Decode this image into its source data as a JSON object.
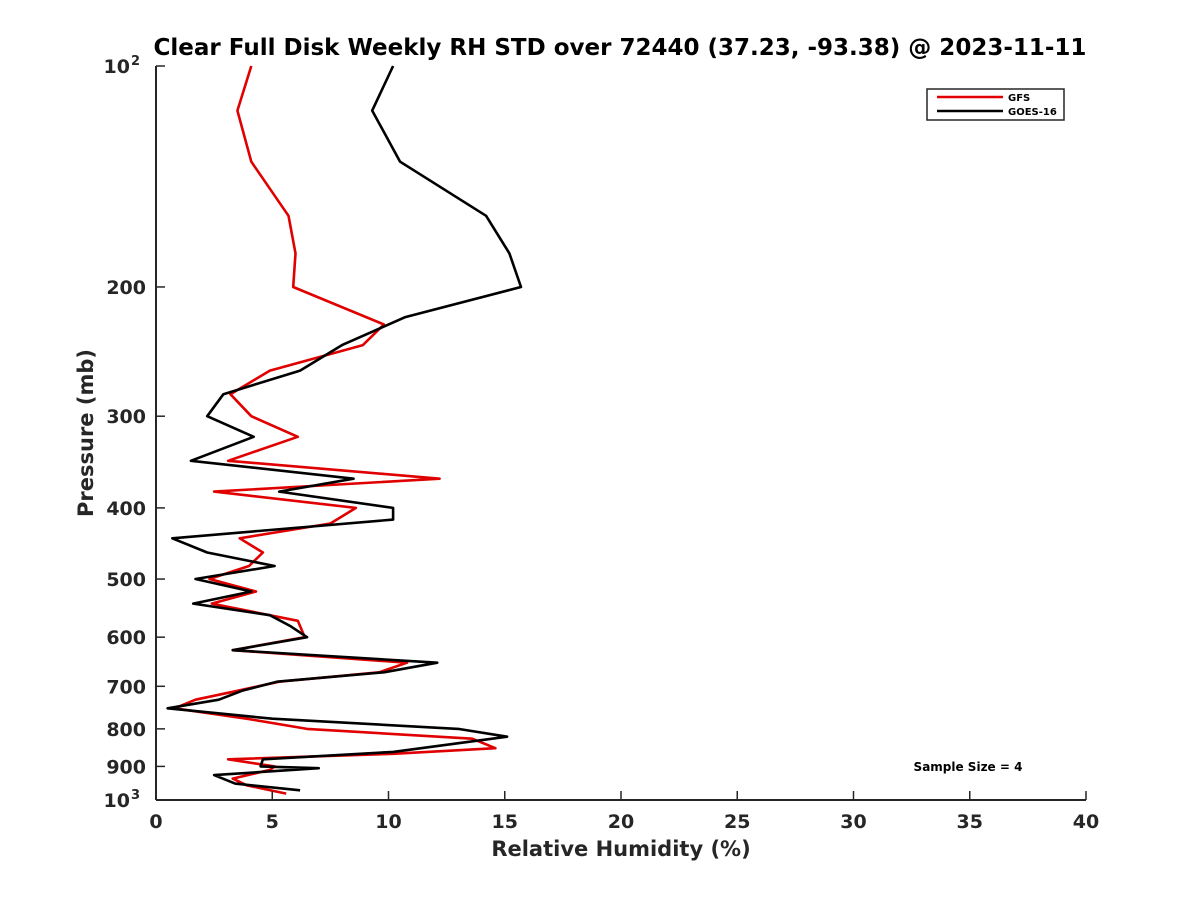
{
  "chart_data": {
    "type": "line",
    "title": "Clear Full Disk Weekly RH STD over 72440 (37.23, -93.38) @ 2023-11-11",
    "xlabel": "Relative Humidity (%)",
    "ylabel": "Pressure (mb)",
    "xlim": [
      0,
      40
    ],
    "ylim": [
      100,
      1000
    ],
    "y_scale": "log",
    "y_reversed": true,
    "x_ticks": [
      "0",
      "5",
      "10",
      "15",
      "20",
      "25",
      "30",
      "35",
      "40"
    ],
    "y_ticks": [
      {
        "base": "10",
        "exp": "2",
        "value": 100
      },
      {
        "label": "200",
        "value": 200
      },
      {
        "label": "300",
        "value": 300
      },
      {
        "label": "400",
        "value": 400
      },
      {
        "label": "500",
        "value": 500
      },
      {
        "label": "600",
        "value": 600
      },
      {
        "label": "700",
        "value": 700
      },
      {
        "label": "800",
        "value": 800
      },
      {
        "label": "900",
        "value": 900
      },
      {
        "base": "10",
        "exp": "3",
        "value": 1000
      }
    ],
    "grid": false,
    "legend_position": "top-right",
    "series": [
      {
        "name": "GFS",
        "color": "#e00000",
        "points": [
          [
            4.1,
            100
          ],
          [
            3.5,
            115
          ],
          [
            4.1,
            135
          ],
          [
            5.7,
            160
          ],
          [
            6.0,
            180
          ],
          [
            5.9,
            200
          ],
          [
            9.8,
            225
          ],
          [
            8.9,
            240
          ],
          [
            4.9,
            260
          ],
          [
            3.2,
            280
          ],
          [
            4.1,
            300
          ],
          [
            6.1,
            320
          ],
          [
            3.1,
            345
          ],
          [
            12.2,
            365
          ],
          [
            2.5,
            380
          ],
          [
            8.6,
            400
          ],
          [
            7.5,
            420
          ],
          [
            3.6,
            440
          ],
          [
            4.6,
            460
          ],
          [
            4.0,
            480
          ],
          [
            2.3,
            500
          ],
          [
            4.3,
            520
          ],
          [
            2.4,
            540
          ],
          [
            6.1,
            570
          ],
          [
            6.4,
            600
          ],
          [
            3.3,
            625
          ],
          [
            10.8,
            650
          ],
          [
            9.6,
            670
          ],
          [
            5.3,
            690
          ],
          [
            3.5,
            710
          ],
          [
            1.7,
            730
          ],
          [
            0.8,
            750
          ],
          [
            3.9,
            775
          ],
          [
            6.5,
            800
          ],
          [
            13.6,
            825
          ],
          [
            14.6,
            850
          ],
          [
            10.2,
            865
          ],
          [
            3.1,
            880
          ],
          [
            5.1,
            900
          ],
          [
            4.9,
            910
          ],
          [
            3.3,
            935
          ],
          [
            3.9,
            955
          ],
          [
            5.6,
            980
          ]
        ]
      },
      {
        "name": "GOES-16",
        "color": "#000000",
        "points": [
          [
            10.2,
            100
          ],
          [
            9.3,
            115
          ],
          [
            10.5,
            135
          ],
          [
            14.2,
            160
          ],
          [
            15.2,
            180
          ],
          [
            15.7,
            200
          ],
          [
            10.7,
            220
          ],
          [
            8.0,
            240
          ],
          [
            6.2,
            260
          ],
          [
            2.9,
            280
          ],
          [
            2.2,
            300
          ],
          [
            4.2,
            320
          ],
          [
            1.5,
            345
          ],
          [
            8.5,
            365
          ],
          [
            5.3,
            380
          ],
          [
            10.2,
            400
          ],
          [
            10.2,
            415
          ],
          [
            4.4,
            430
          ],
          [
            0.7,
            440
          ],
          [
            2.2,
            460
          ],
          [
            5.1,
            480
          ],
          [
            1.7,
            500
          ],
          [
            4.1,
            520
          ],
          [
            1.6,
            540
          ],
          [
            4.9,
            560
          ],
          [
            5.8,
            580
          ],
          [
            6.5,
            600
          ],
          [
            3.3,
            625
          ],
          [
            12.1,
            650
          ],
          [
            9.8,
            670
          ],
          [
            5.2,
            690
          ],
          [
            3.7,
            710
          ],
          [
            2.7,
            730
          ],
          [
            0.5,
            750
          ],
          [
            5.0,
            775
          ],
          [
            13.0,
            800
          ],
          [
            15.1,
            820
          ],
          [
            10.2,
            860
          ],
          [
            4.6,
            880
          ],
          [
            4.5,
            900
          ],
          [
            7.0,
            905
          ],
          [
            2.5,
            925
          ],
          [
            3.4,
            950
          ],
          [
            6.2,
            970
          ]
        ]
      }
    ],
    "annotation": "Sample Size = 4"
  }
}
